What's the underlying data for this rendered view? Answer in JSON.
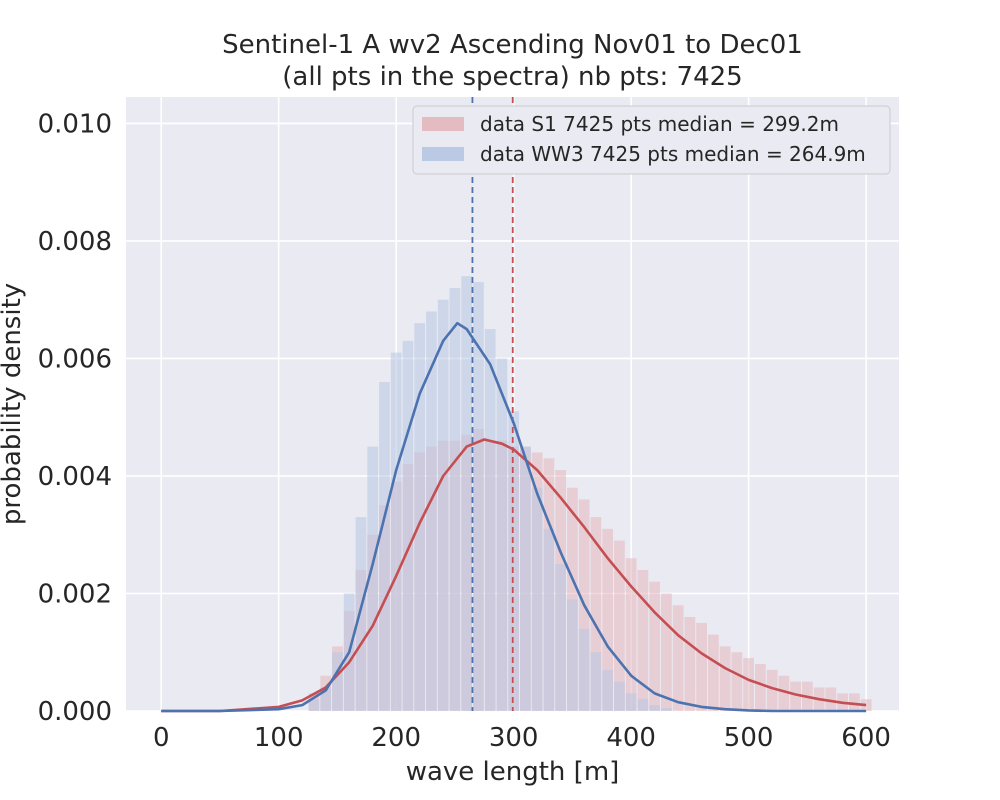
{
  "chart_data": {
    "type": "histogram",
    "title": "Sentinel-1 A wv2 Ascending Nov01 to Dec01",
    "subtitle": "(all pts in the spectra) nb pts: 7425",
    "xlabel": "wave length [m]",
    "ylabel": "probability density",
    "xlim": [
      -30,
      628
    ],
    "ylim": [
      0,
      0.01045
    ],
    "xticks": [
      0,
      100,
      200,
      300,
      400,
      500,
      600
    ],
    "xtick_labels": [
      "0",
      "100",
      "200",
      "300",
      "400",
      "500",
      "600"
    ],
    "yticks": [
      0.0,
      0.002,
      0.004,
      0.006,
      0.008,
      0.01
    ],
    "ytick_labels": [
      "0.000",
      "0.002",
      "0.004",
      "0.006",
      "0.008",
      "0.010"
    ],
    "grid": true,
    "legend_position": "top-right",
    "series": [
      {
        "name": "data S1 7425 pts median = 299.2m",
        "color": "#c44e52",
        "fill_color": "#e3b6bb",
        "histogram": {
          "x": [
            130,
            140,
            150,
            160,
            170,
            180,
            190,
            200,
            210,
            220,
            230,
            240,
            250,
            260,
            270,
            280,
            290,
            300,
            310,
            320,
            330,
            340,
            350,
            360,
            370,
            380,
            390,
            400,
            410,
            420,
            430,
            440,
            450,
            460,
            470,
            480,
            490,
            500,
            510,
            520,
            530,
            540,
            550,
            560,
            570,
            580,
            590,
            600
          ],
          "values": [
            0.0003,
            0.0006,
            0.0011,
            0.0017,
            0.0024,
            0.003,
            0.0035,
            0.0039,
            0.0042,
            0.0044,
            0.0045,
            0.0046,
            0.0046,
            0.0047,
            0.0048,
            0.0046,
            0.0046,
            0.0045,
            0.0045,
            0.0044,
            0.0043,
            0.0041,
            0.0038,
            0.0036,
            0.0033,
            0.0031,
            0.0029,
            0.0026,
            0.0024,
            0.0022,
            0.002,
            0.0018,
            0.0016,
            0.0015,
            0.0013,
            0.0011,
            0.001,
            0.0009,
            0.0008,
            0.0007,
            0.0006,
            0.0005,
            0.0005,
            0.0004,
            0.0004,
            0.0003,
            0.0003,
            0.0002
          ]
        },
        "fit_curve": {
          "x": [
            0,
            50,
            100,
            120,
            140,
            160,
            180,
            200,
            220,
            240,
            260,
            275,
            290,
            300,
            320,
            340,
            360,
            380,
            400,
            420,
            440,
            460,
            480,
            500,
            520,
            540,
            560,
            580,
            600
          ],
          "y": [
            0.0,
            0.0,
            7e-05,
            0.00018,
            0.0004,
            0.00083,
            0.00145,
            0.0023,
            0.0032,
            0.004,
            0.0045,
            0.00462,
            0.00455,
            0.00445,
            0.0041,
            0.00363,
            0.00313,
            0.0026,
            0.00212,
            0.00168,
            0.00129,
            0.00098,
            0.00073,
            0.00053,
            0.00039,
            0.00028,
            0.0002,
            0.00014,
            0.0001
          ]
        },
        "median": 299.2
      },
      {
        "name": "data WW3 7425 pts median = 264.9m",
        "color": "#4c72b0",
        "fill_color": "#b6c6e2",
        "histogram": {
          "x": [
            130,
            140,
            150,
            160,
            170,
            180,
            190,
            200,
            210,
            220,
            230,
            240,
            250,
            260,
            270,
            280,
            290,
            300,
            310,
            320,
            330,
            340,
            350,
            360,
            370,
            380,
            390,
            400,
            410,
            420,
            430
          ],
          "values": [
            0.0002,
            0.0004,
            0.001,
            0.002,
            0.0033,
            0.0045,
            0.0056,
            0.0061,
            0.0063,
            0.0066,
            0.0068,
            0.007,
            0.0072,
            0.0074,
            0.0073,
            0.0065,
            0.006,
            0.0051,
            0.0045,
            0.0038,
            0.0031,
            0.0025,
            0.0019,
            0.0014,
            0.001,
            0.0007,
            0.0005,
            0.0003,
            0.0002,
            0.0001,
            5e-05
          ]
        },
        "fit_curve": {
          "x": [
            0,
            50,
            100,
            120,
            140,
            160,
            180,
            200,
            220,
            240,
            252,
            260,
            280,
            300,
            320,
            340,
            360,
            380,
            400,
            420,
            440,
            460,
            480,
            500,
            520,
            540,
            560,
            580,
            600
          ],
          "y": [
            0.0,
            0.0,
            3e-05,
            0.0001,
            0.00035,
            0.001,
            0.0025,
            0.0041,
            0.0054,
            0.0063,
            0.0066,
            0.0065,
            0.0059,
            0.0049,
            0.0037,
            0.0027,
            0.0018,
            0.0011,
            0.0006,
            0.0003,
            0.00015,
            7e-05,
            3e-05,
            1e-05,
            0.0,
            0.0,
            0.0,
            0.0,
            0.0
          ]
        },
        "median": 264.9
      }
    ]
  }
}
